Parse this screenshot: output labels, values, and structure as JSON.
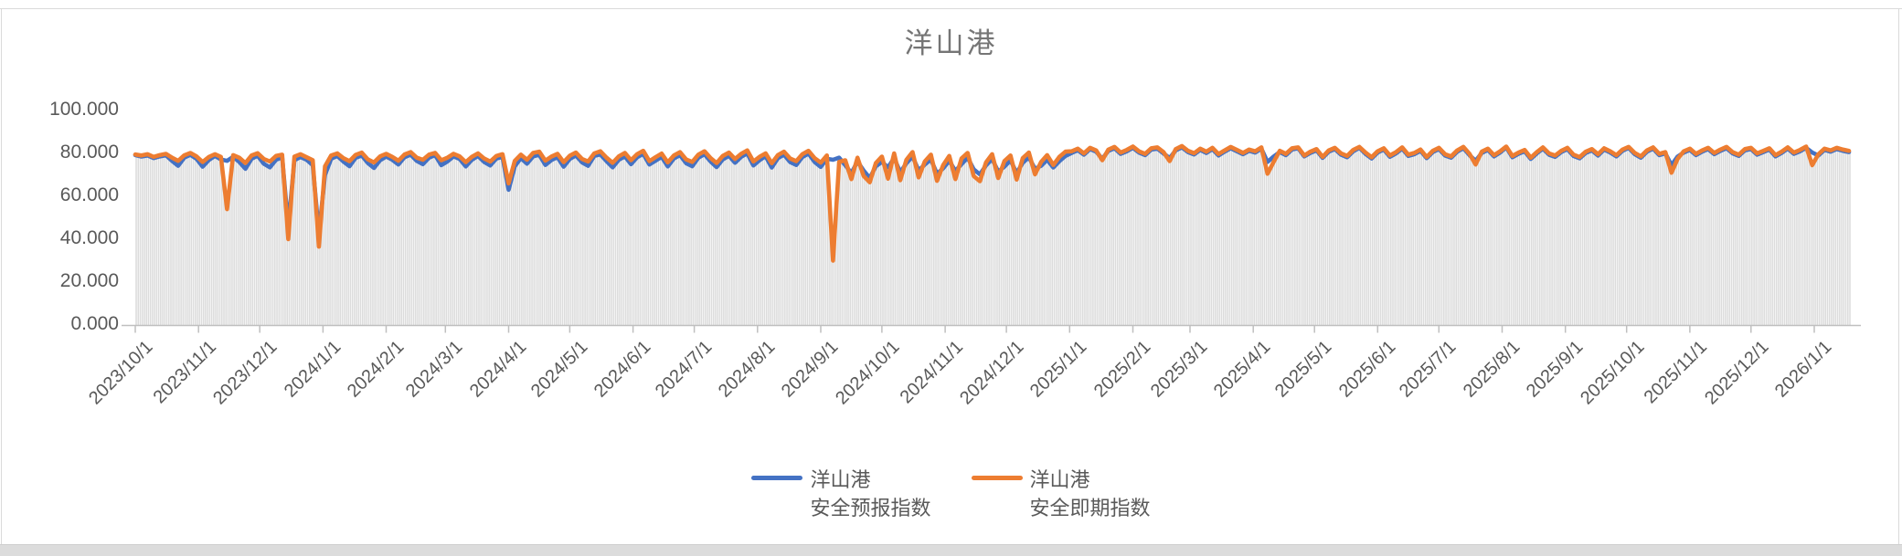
{
  "colors": {
    "blue": "#4472C4",
    "orange": "#ED7D31",
    "bars": "#DCDCDC",
    "axis": "#BFBFBF",
    "label_text": "#595959",
    "title_text": "#757575"
  },
  "legend": {
    "entries": [
      {
        "line1": "洋山港",
        "line2": "安全预报指数",
        "color": "#4472C4"
      },
      {
        "line1": "洋山港",
        "line2": "安全即期指数",
        "color": "#ED7D31"
      }
    ]
  },
  "chart_data": {
    "type": "line",
    "title": "洋山港",
    "grid": false,
    "legend_position": "bottom",
    "ylim": [
      0,
      100
    ],
    "y_tick_values": [
      0,
      20,
      40,
      60,
      80,
      100
    ],
    "y_tick_labels": [
      "0.000",
      "20.000",
      "40.000",
      "60.000",
      "80.000",
      "100.000"
    ],
    "x_start_date": "2023/10/1",
    "x_end_date": "2026/1/18",
    "sample_interval_days": 3,
    "x_tick_labels": [
      "2023/10/1",
      "2023/11/1",
      "2023/12/1",
      "2024/1/1",
      "2024/2/1",
      "2024/3/1",
      "2024/4/1",
      "2024/5/1",
      "2024/6/1",
      "2024/7/1",
      "2024/8/1",
      "2024/9/1",
      "2024/10/1",
      "2024/11/1",
      "2024/12/1",
      "2025/1/1",
      "2025/2/1",
      "2025/3/1",
      "2025/4/1",
      "2025/5/1",
      "2025/6/1",
      "2025/7/1",
      "2025/8/1",
      "2025/9/1",
      "2025/10/1",
      "2025/11/1",
      "2025/12/1",
      "2026/1/1"
    ],
    "month_day_offsets": [
      0,
      31,
      61,
      92,
      123,
      152,
      183,
      213,
      244,
      274,
      305,
      336,
      366,
      397,
      427,
      458,
      489,
      517,
      548,
      578,
      609,
      639,
      670,
      701,
      731,
      762,
      792,
      823
    ],
    "background_bars": {
      "color": "#DCDCDC",
      "note": "dense daily light-gray columns rising from 0 to the lower envelope of the two line series"
    },
    "series": [
      {
        "name": "洋山港 安全预报指数",
        "color": "#4472C4",
        "values": [
          79.2,
          78.5,
          79.0,
          77.8,
          78.6,
          79.1,
          76.5,
          74.2,
          78.0,
          79.3,
          77.5,
          73.8,
          76.9,
          78.8,
          77.2,
          76.5,
          78.4,
          76.0,
          72.8,
          77.5,
          78.9,
          75.2,
          73.5,
          77.0,
          78.2,
          46.0,
          76.8,
          78.3,
          77.0,
          74.5,
          42.5,
          70.0,
          77.5,
          78.8,
          76.2,
          74.0,
          77.9,
          79.0,
          75.5,
          73.2,
          76.8,
          78.5,
          77.0,
          74.8,
          78.2,
          79.4,
          76.5,
          75.0,
          78.0,
          79.2,
          74.5,
          76.2,
          78.6,
          77.4,
          73.9,
          77.0,
          78.8,
          76.0,
          74.4,
          77.6,
          78.4,
          63.0,
          74.0,
          77.8,
          75.2,
          78.6,
          79.3,
          74.6,
          76.9,
          78.2,
          73.8,
          77.4,
          79.0,
          75.8,
          74.2,
          78.8,
          79.5,
          76.4,
          73.5,
          77.0,
          78.6,
          75.0,
          78.2,
          79.8,
          74.8,
          76.6,
          78.4,
          73.9,
          77.6,
          79.2,
          75.4,
          74.0,
          78.0,
          79.6,
          76.2,
          73.6,
          77.2,
          78.9,
          75.6,
          78.4,
          80.0,
          74.4,
          76.8,
          78.7,
          73.4,
          77.8,
          79.4,
          75.9,
          74.6,
          78.3,
          79.9,
          76.0,
          73.7,
          77.5,
          77.0,
          78.0,
          74.5,
          70.8,
          76.2,
          72.0,
          68.5,
          74.0,
          76.0,
          73.5,
          77.8,
          71.2,
          75.4,
          78.6,
          72.0,
          74.8,
          77.2,
          70.5,
          73.0,
          76.6,
          71.8,
          75.0,
          78.0,
          72.5,
          70.2,
          74.4,
          77.4,
          71.5,
          73.8,
          76.8,
          70.8,
          75.6,
          78.2,
          72.8,
          74.2,
          77.0,
          73.4,
          76.4,
          78.8,
          80.2,
          81.5,
          79.4,
          82.0,
          80.8,
          77.5,
          81.2,
          82.4,
          79.8,
          81.0,
          82.6,
          80.4,
          79.2,
          81.8,
          82.2,
          80.0,
          77.8,
          81.4,
          82.8,
          80.6,
          79.5,
          81.6,
          80.2,
          82.0,
          79.0,
          80.8,
          82.4,
          81.0,
          79.6,
          81.2,
          80.4,
          82.2,
          76.0,
          78.5,
          80.6,
          79.2,
          81.8,
          82.4,
          78.6,
          80.2,
          81.4,
          77.9,
          80.8,
          82.0,
          79.4,
          78.2,
          81.0,
          82.6,
          79.8,
          77.6,
          80.4,
          81.8,
          78.4,
          80.0,
          82.2,
          78.8,
          79.6,
          81.2,
          77.8,
          80.6,
          82.0,
          79.0,
          78.0,
          80.8,
          82.4,
          79.2,
          76.5,
          80.2,
          81.6,
          78.6,
          80.4,
          82.8,
          78.2,
          79.8,
          81.0,
          77.4,
          80.0,
          82.2,
          79.4,
          78.4,
          80.6,
          82.0,
          78.8,
          77.7,
          80.2,
          81.4,
          79.0,
          81.8,
          80.4,
          78.6,
          81.2,
          82.6,
          79.6,
          78.0,
          80.8,
          82.2,
          79.2,
          80.0,
          74.5,
          78.5,
          80.4,
          81.6,
          79.2,
          80.8,
          82.0,
          79.6,
          81.2,
          82.4,
          80.0,
          78.8,
          81.4,
          82.0,
          79.4,
          80.6,
          81.8,
          78.6,
          80.2,
          82.2,
          79.8,
          81.0,
          82.6,
          80.4,
          79.0,
          81.6,
          80.8,
          82.0,
          81.2,
          80.6
        ]
      },
      {
        "name": "洋山港 安全即期指数",
        "color": "#ED7D31",
        "values": [
          79.5,
          79.0,
          79.6,
          78.4,
          79.2,
          79.8,
          78.0,
          76.5,
          79.1,
          80.2,
          78.6,
          76.0,
          78.3,
          79.6,
          78.4,
          54.0,
          79.2,
          78.0,
          75.5,
          79.0,
          80.1,
          77.4,
          76.2,
          78.8,
          79.4,
          40.0,
          78.5,
          79.6,
          78.2,
          76.8,
          36.5,
          74.0,
          79.0,
          80.0,
          77.8,
          76.4,
          79.3,
          80.4,
          77.2,
          75.8,
          78.6,
          79.8,
          78.4,
          76.6,
          79.5,
          80.6,
          78.0,
          77.0,
          79.4,
          80.2,
          76.8,
          78.0,
          79.8,
          78.6,
          75.9,
          78.4,
          80.0,
          77.6,
          76.2,
          78.8,
          79.6,
          66.0,
          76.5,
          79.4,
          77.0,
          80.2,
          80.8,
          76.6,
          78.5,
          79.8,
          75.9,
          78.9,
          80.4,
          77.4,
          76.2,
          80.0,
          81.0,
          78.0,
          75.6,
          78.6,
          80.2,
          76.8,
          79.6,
          81.2,
          76.4,
          78.2,
          79.9,
          75.8,
          79.0,
          80.6,
          77.2,
          76.0,
          79.4,
          81.0,
          77.8,
          75.5,
          78.8,
          80.4,
          77.4,
          79.8,
          81.4,
          76.2,
          78.4,
          80.0,
          75.4,
          79.2,
          80.8,
          77.6,
          76.4,
          79.6,
          81.2,
          77.8,
          75.7,
          79.0,
          30.0,
          76.0,
          76.8,
          68.0,
          78.0,
          69.5,
          66.5,
          75.5,
          78.5,
          68.2,
          80.0,
          67.5,
          77.0,
          80.6,
          68.8,
          76.2,
          79.4,
          67.2,
          74.5,
          78.8,
          68.0,
          77.6,
          80.2,
          69.4,
          67.0,
          75.8,
          79.6,
          68.5,
          76.4,
          79.0,
          67.8,
          77.8,
          80.4,
          70.2,
          76.0,
          79.2,
          74.6,
          78.4,
          80.8,
          81.0,
          82.2,
          80.0,
          82.6,
          81.4,
          76.8,
          81.8,
          83.0,
          80.4,
          81.6,
          83.2,
          81.0,
          79.8,
          82.4,
          82.8,
          80.6,
          76.4,
          82.0,
          83.4,
          81.2,
          80.1,
          82.2,
          80.8,
          82.6,
          79.7,
          81.4,
          83.0,
          81.6,
          80.2,
          81.8,
          81.0,
          82.8,
          70.5,
          76.0,
          81.2,
          79.8,
          82.4,
          82.8,
          79.0,
          80.8,
          82.0,
          78.4,
          81.4,
          82.6,
          80.0,
          78.8,
          81.6,
          83.0,
          80.4,
          78.2,
          81.0,
          82.4,
          79.0,
          80.6,
          82.8,
          79.4,
          80.2,
          81.8,
          78.3,
          81.2,
          82.6,
          79.6,
          78.6,
          81.4,
          83.0,
          79.8,
          74.8,
          80.8,
          82.2,
          79.2,
          81.0,
          83.2,
          78.8,
          80.4,
          81.6,
          78.0,
          80.6,
          82.8,
          80.0,
          79.0,
          81.2,
          82.6,
          79.4,
          78.3,
          80.8,
          82.0,
          79.6,
          82.4,
          81.0,
          79.2,
          81.8,
          83.0,
          80.2,
          78.6,
          81.4,
          82.8,
          79.8,
          80.6,
          71.0,
          77.5,
          81.0,
          82.2,
          79.8,
          81.4,
          82.6,
          80.2,
          81.8,
          83.0,
          80.6,
          79.4,
          82.0,
          82.6,
          80.0,
          81.2,
          82.4,
          79.2,
          80.8,
          82.8,
          80.4,
          81.6,
          83.2,
          74.5,
          79.6,
          82.2,
          81.4,
          82.6,
          81.8,
          81.2
        ]
      }
    ]
  }
}
